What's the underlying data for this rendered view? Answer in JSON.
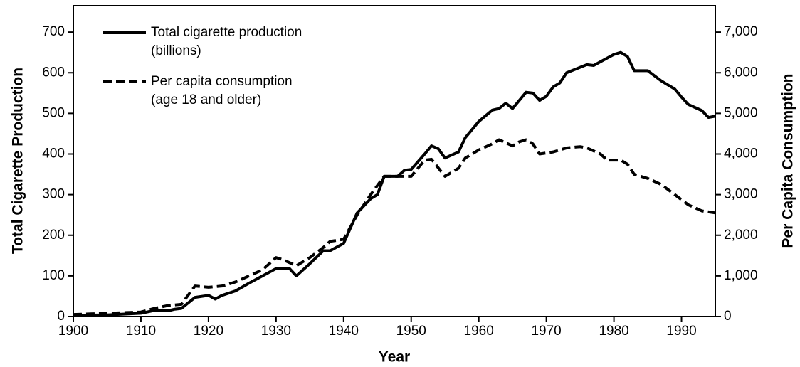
{
  "chart_data": {
    "type": "line",
    "xlabel": "Year",
    "ylabel": "Total Cigarette Production",
    "y2label": "Per Capita Consumption",
    "xlim": [
      1900,
      1995
    ],
    "ylim": [
      0,
      765
    ],
    "y2lim": [
      0,
      7650
    ],
    "xticks": [
      1900,
      1910,
      1920,
      1930,
      1940,
      1950,
      1960,
      1970,
      1980,
      1990
    ],
    "yticks": [
      0,
      100,
      200,
      300,
      400,
      500,
      600,
      700
    ],
    "y2ticks": [
      0,
      {
        "value": 1000,
        "label": "1,000"
      },
      {
        "value": 2000,
        "label": "2,000"
      },
      {
        "value": 3000,
        "label": "3,000"
      },
      {
        "value": 4000,
        "label": "4,000"
      },
      {
        "value": 5000,
        "label": "5,000"
      },
      {
        "value": 6000,
        "label": "6,000"
      },
      {
        "value": 7000,
        "label": "7,000"
      }
    ],
    "legend": "upper left",
    "series": [
      {
        "name": [
          "Total cigarette production",
          "(billions)"
        ],
        "color": "#000000",
        "dash": false,
        "axis": "y",
        "x": [
          1900,
          1905,
          1910,
          1912,
          1914,
          1915,
          1916,
          1918,
          1920,
          1921,
          1922,
          1924,
          1926,
          1928,
          1930,
          1932,
          1933,
          1935,
          1937,
          1938,
          1940,
          1942,
          1944,
          1945,
          1946,
          1948,
          1949,
          1950,
          1952,
          1953,
          1954,
          1955,
          1957,
          1958,
          1960,
          1962,
          1963,
          1964,
          1965,
          1967,
          1968,
          1969,
          1970,
          1971,
          1972,
          1973,
          1976,
          1977,
          1980,
          1981,
          1982,
          1983,
          1985,
          1987,
          1989,
          1990,
          1991,
          1993,
          1994,
          1995
        ],
        "values": [
          3,
          4,
          8,
          15,
          14,
          18,
          20,
          47,
          52,
          43,
          52,
          63,
          82,
          100,
          118,
          118,
          100,
          130,
          162,
          162,
          180,
          255,
          290,
          300,
          345,
          345,
          360,
          362,
          400,
          420,
          413,
          390,
          405,
          440,
          480,
          508,
          512,
          525,
          512,
          552,
          550,
          532,
          542,
          565,
          575,
          600,
          620,
          618,
          645,
          650,
          640,
          605,
          605,
          580,
          560,
          540,
          522,
          507,
          490,
          493
        ]
      },
      {
        "name": [
          "Per capita consumption",
          "(age 18 and older)"
        ],
        "color": "#000000",
        "dash": true,
        "axis": "y2",
        "x": [
          1900,
          1905,
          1910,
          1912,
          1914,
          1916,
          1918,
          1920,
          1922,
          1924,
          1926,
          1928,
          1930,
          1931,
          1933,
          1935,
          1937,
          1938,
          1940,
          1942,
          1944,
          1946,
          1948,
          1950,
          1952,
          1953,
          1955,
          1957,
          1958,
          1960,
          1962,
          1963,
          1965,
          1966,
          1967,
          1968,
          1969,
          1971,
          1973,
          1975,
          1976,
          1978,
          1979,
          1981,
          1982,
          1983,
          1985,
          1987,
          1989,
          1991,
          1993,
          1995
        ],
        "values": [
          50,
          80,
          110,
          200,
          270,
          300,
          750,
          720,
          750,
          850,
          1000,
          1150,
          1450,
          1400,
          1250,
          1450,
          1700,
          1850,
          1900,
          2500,
          3000,
          3450,
          3450,
          3450,
          3850,
          3870,
          3450,
          3650,
          3900,
          4100,
          4250,
          4350,
          4200,
          4300,
          4350,
          4250,
          4000,
          4050,
          4150,
          4180,
          4150,
          4000,
          3850,
          3850,
          3750,
          3500,
          3400,
          3250,
          3000,
          2750,
          2600,
          2550
        ]
      }
    ]
  }
}
